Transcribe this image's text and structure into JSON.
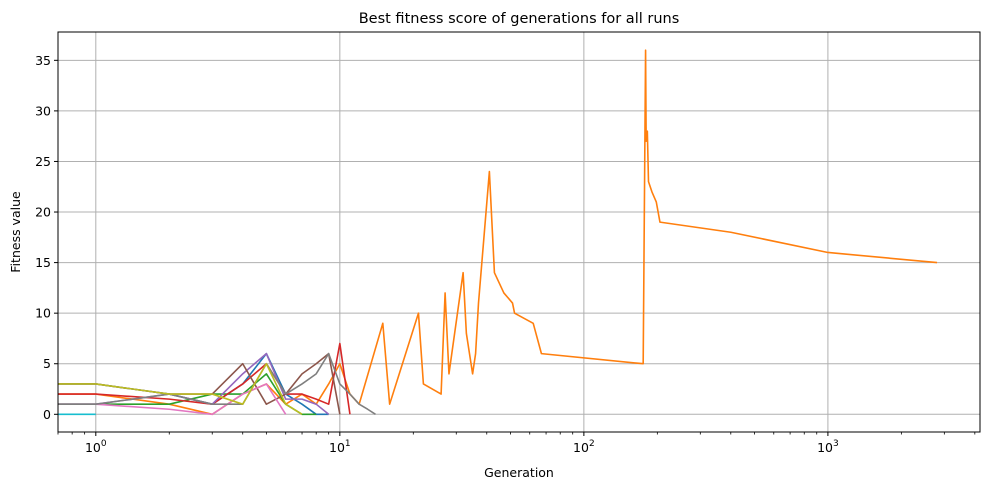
{
  "chart_data": {
    "type": "line",
    "title": "Best fitness score of generations for all runs",
    "xlabel": "Generation",
    "ylabel": "Fitness value",
    "xscale": "log",
    "xlim": [
      0.7,
      4200
    ],
    "ylim": [
      -1.75,
      37.8
    ],
    "grid": true,
    "legend": "none",
    "x_ticks": [
      {
        "value": 1,
        "base": "10",
        "exp": "0"
      },
      {
        "value": 10,
        "base": "10",
        "exp": "1"
      },
      {
        "value": 100,
        "base": "10",
        "exp": "2"
      },
      {
        "value": 1000,
        "base": "10",
        "exp": "3"
      }
    ],
    "y_ticks": [
      0,
      5,
      10,
      15,
      20,
      25,
      30,
      35
    ],
    "series": [
      {
        "color": "#1f77b4",
        "x": [
          0.7,
          1,
          2,
          3,
          4,
          5,
          6,
          7,
          8,
          9
        ],
        "y": [
          3,
          3,
          2,
          1,
          3,
          6,
          2,
          1,
          0,
          0
        ]
      },
      {
        "color": "#ff7f0e",
        "x": [
          0.7,
          1,
          2,
          3,
          4,
          5,
          6,
          7,
          8,
          9,
          10,
          11,
          12,
          15,
          16,
          21,
          22,
          26,
          27,
          28,
          32,
          33,
          35,
          36,
          37,
          41,
          43,
          47,
          51,
          52,
          62,
          67,
          175,
          179,
          180,
          182,
          184,
          190,
          198,
          205,
          400,
          1000,
          2800
        ],
        "y": [
          2,
          2,
          1,
          0,
          2,
          3,
          1,
          2,
          1,
          3,
          5,
          2,
          1,
          9,
          1,
          10,
          3,
          2,
          12,
          4,
          14,
          8,
          4,
          6,
          11,
          24,
          14,
          12,
          11,
          10,
          9,
          6,
          5,
          36,
          27,
          28,
          23,
          22,
          21,
          19,
          18,
          16,
          15
        ]
      },
      {
        "color": "#2ca02c",
        "x": [
          0.7,
          1,
          2,
          3,
          4,
          5,
          6,
          7,
          8
        ],
        "y": [
          1,
          1,
          1,
          2,
          2,
          4,
          1,
          0,
          0
        ]
      },
      {
        "color": "#d62728",
        "x": [
          0.7,
          1,
          2,
          3,
          4,
          5,
          6,
          7,
          8,
          9,
          10,
          11
        ],
        "y": [
          2,
          2,
          1.5,
          1,
          3,
          5,
          2,
          2,
          1.5,
          1,
          7,
          0
        ]
      },
      {
        "color": "#9467bd",
        "x": [
          0.7,
          1,
          2,
          3,
          4,
          5,
          6,
          7,
          8,
          9
        ],
        "y": [
          1,
          1,
          2,
          1,
          4,
          6,
          1.5,
          1.5,
          1,
          0
        ]
      },
      {
        "color": "#8c564b",
        "x": [
          0.7,
          1,
          2,
          3,
          4,
          5,
          6,
          7,
          8,
          9,
          10
        ],
        "y": [
          3,
          3,
          2,
          2,
          5,
          1,
          2,
          4,
          5,
          6,
          0
        ]
      },
      {
        "color": "#e377c2",
        "x": [
          0.7,
          1,
          2,
          3,
          4,
          5,
          6
        ],
        "y": [
          1,
          1,
          0.5,
          0,
          2,
          3,
          0
        ]
      },
      {
        "color": "#7f7f7f",
        "x": [
          0.7,
          1,
          2,
          3,
          4,
          5,
          6,
          7,
          8,
          9,
          10,
          11,
          12,
          13,
          14
        ],
        "y": [
          1,
          1,
          2,
          1,
          1,
          5,
          2,
          3,
          4,
          6,
          3,
          2,
          1,
          0.5,
          0
        ]
      },
      {
        "color": "#bcbd22",
        "x": [
          0.7,
          1,
          2,
          3,
          4,
          5,
          6,
          7
        ],
        "y": [
          3,
          3,
          2,
          2,
          1,
          5,
          1,
          0
        ]
      },
      {
        "color": "#17becf",
        "x": [
          0.7,
          1
        ],
        "y": [
          0,
          0
        ]
      }
    ]
  }
}
